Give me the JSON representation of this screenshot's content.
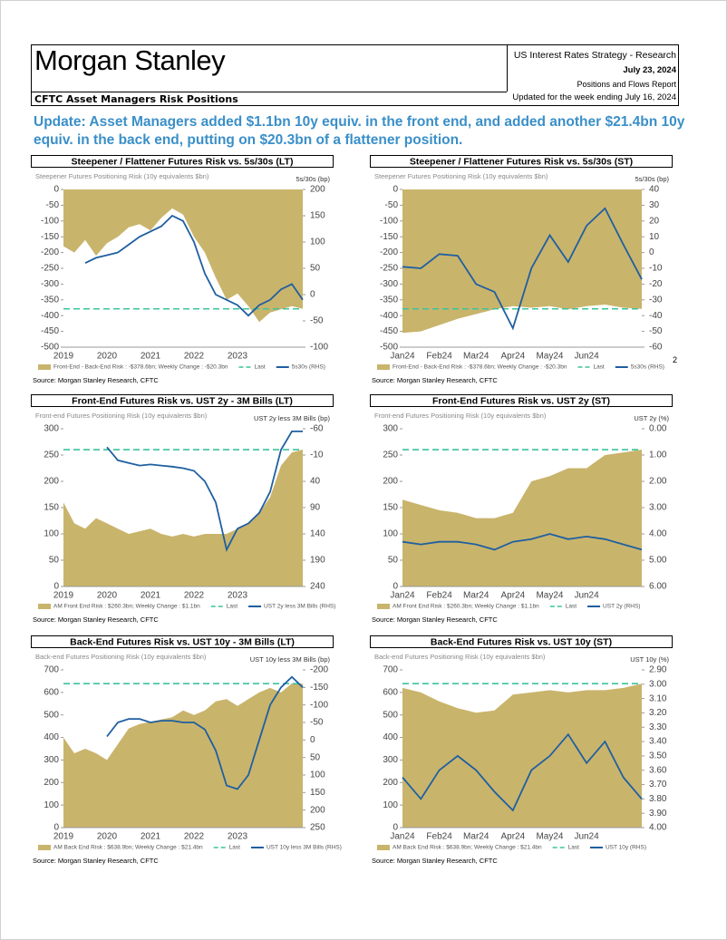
{
  "header": {
    "brand": "Morgan Stanley",
    "series": "US Interest Rates Strategy - Research",
    "date": "July 23, 2024",
    "report": "Positions and Flows Report",
    "updated": "Updated for the week ending July 16, 2024",
    "section": "CFTC Asset Managers Risk Positions"
  },
  "headline": "Update: Asset Managers added $1.1bn 10y equiv. in the front end, and added another $21.4bn 10y equiv. in the back end, putting on $20.3bn of a flattener position.",
  "page_number": "2",
  "chart_data": [
    {
      "type": "area",
      "title": "Steepener / Flattener Futures Risk vs. 5s/30s (LT)",
      "subtitle": "Steepener Futures Positioning Risk (10y equivalents $bn)",
      "y2_label": "5s/30s (bp)",
      "categories": [
        "2019",
        null,
        null,
        null,
        "2020",
        null,
        null,
        null,
        "2021",
        null,
        null,
        null,
        "2022",
        null,
        null,
        null,
        "2023",
        null,
        null,
        null,
        null,
        null,
        null
      ],
      "series": [
        {
          "name": "Front-End - Back-End Risk : -$378.6bn; Weekly Change : -$20.3bn",
          "color": "#c9b46c",
          "values": [
            -180,
            -200,
            -160,
            -210,
            -170,
            -150,
            -120,
            -110,
            -130,
            -90,
            -60,
            -80,
            -150,
            -200,
            -280,
            -350,
            -330,
            -370,
            -420,
            -390,
            -380,
            -370,
            -378.6
          ]
        },
        {
          "name": "Last",
          "color": "#3cc39c",
          "value": -378.6
        },
        {
          "name": "5s30s (RHS)",
          "color": "#1f5fa0",
          "axis": "y2",
          "values": [
            null,
            null,
            60,
            70,
            75,
            80,
            95,
            110,
            120,
            130,
            150,
            140,
            100,
            40,
            0,
            -10,
            -20,
            -40,
            -20,
            -10,
            10,
            20,
            -10
          ]
        }
      ],
      "ylim": [
        -500,
        0
      ],
      "yticks": [
        0,
        -50,
        -100,
        -150,
        -200,
        -250,
        -300,
        -350,
        -400,
        -450,
        -500
      ],
      "y2lim": [
        -100,
        200
      ],
      "y2ticks": [
        200,
        150,
        100,
        50,
        0,
        -50,
        -100
      ],
      "source": "Source: Morgan Stanley Research, CFTC"
    },
    {
      "type": "area",
      "title": "Steepener / Flattener Futures Risk vs. 5s/30s (ST)",
      "subtitle": "Steepener Futures Positioning Risk (10y equivalents $bn)",
      "y2_label": "5s/30s (bp)",
      "categories": [
        "Jan24",
        null,
        "Feb24",
        null,
        "Mar24",
        null,
        "Apr24",
        null,
        "May24",
        null,
        "Jun24",
        null,
        null,
        null
      ],
      "series": [
        {
          "name": "Front-End - Back-End Risk : -$378.6bn; Weekly Change : -$20.3bn",
          "color": "#c9b46c",
          "values": [
            -455,
            -450,
            -430,
            -410,
            -395,
            -380,
            -370,
            -375,
            -370,
            -380,
            -370,
            -365,
            -375,
            -378.6
          ]
        },
        {
          "name": "Last",
          "color": "#3cc39c",
          "value": -378.6
        },
        {
          "name": "5s30s (RHS)",
          "color": "#1f5fa0",
          "axis": "y2",
          "values": [
            -9,
            -10,
            -1,
            -2,
            -20,
            -25,
            -48,
            -10,
            11,
            -6,
            17,
            28,
            5,
            -17
          ]
        }
      ],
      "ylim": [
        -500,
        0
      ],
      "yticks": [
        0,
        -50,
        -100,
        -150,
        -200,
        -250,
        -300,
        -350,
        -400,
        -450,
        -500
      ],
      "y2lim": [
        -60,
        40
      ],
      "y2ticks": [
        40,
        30,
        20,
        10,
        0,
        -10,
        -20,
        -30,
        -40,
        -50,
        -60
      ],
      "source": "Source: Morgan Stanley Research, CFTC"
    },
    {
      "type": "area",
      "title": "Front-End Futures Risk vs. UST 2y - 3M Bills (LT)",
      "subtitle": "Front-end Futures Positioning Risk (10y equivalents $bn)",
      "y2_label": "UST 2y less 3M Bills (bp)",
      "categories": [
        "2019",
        null,
        null,
        null,
        "2020",
        null,
        null,
        null,
        "2021",
        null,
        null,
        null,
        "2022",
        null,
        null,
        null,
        "2023",
        null,
        null,
        null,
        null,
        null,
        null
      ],
      "series": [
        {
          "name": "AM Front End Risk : $260.3bn; Weekly Change : $1.1bn",
          "color": "#c9b46c",
          "values": [
            160,
            120,
            110,
            130,
            120,
            110,
            100,
            105,
            110,
            100,
            95,
            100,
            95,
            100,
            100,
            100,
            110,
            120,
            140,
            170,
            230,
            255,
            260.3
          ]
        },
        {
          "name": "Last",
          "color": "#3cc39c",
          "value": 260.3
        },
        {
          "name": "UST 2y less 3M Bills (RHS)",
          "color": "#1f5fa0",
          "axis": "y2",
          "values": [
            null,
            null,
            null,
            null,
            -25,
            0,
            5,
            10,
            8,
            10,
            12,
            15,
            20,
            40,
            80,
            170,
            130,
            120,
            100,
            60,
            -20,
            -55,
            -55
          ]
        }
      ],
      "ylim": [
        0,
        300
      ],
      "yticks": [
        300,
        250,
        200,
        150,
        100,
        50,
        0
      ],
      "y2lim": [
        240,
        -60
      ],
      "y2ticks": [
        -60,
        -10,
        40,
        90,
        140,
        190,
        240
      ],
      "source": "Source: Morgan Stanley Research, CFTC"
    },
    {
      "type": "area",
      "title": "Front-End Futures Risk vs. UST 2y (ST)",
      "subtitle": "Front-end Futures Positioning Risk (10y equivalents $bn)",
      "y2_label": "UST 2y (%)",
      "categories": [
        "Jan24",
        null,
        "Feb24",
        null,
        "Mar24",
        null,
        "Apr24",
        null,
        "May24",
        null,
        "Jun24",
        null,
        null,
        null
      ],
      "series": [
        {
          "name": "AM Front End Risk : $260.3bn; Weekly Change : $1.1bn",
          "color": "#c9b46c",
          "values": [
            165,
            155,
            145,
            140,
            130,
            130,
            140,
            200,
            210,
            225,
            225,
            250,
            255,
            260.3
          ]
        },
        {
          "name": "Last",
          "color": "#3cc39c",
          "value": 260.3
        },
        {
          "name": "UST 2y (RHS)",
          "color": "#1f5fa0",
          "axis": "y2",
          "values": [
            4.3,
            4.4,
            4.3,
            4.3,
            4.4,
            4.6,
            4.3,
            4.2,
            4.0,
            4.2,
            4.1,
            4.2,
            4.4,
            4.6
          ]
        }
      ],
      "ylim": [
        0,
        300
      ],
      "yticks": [
        300,
        250,
        200,
        150,
        100,
        50,
        0
      ],
      "y2lim": [
        6,
        0
      ],
      "y2ticks": [
        {
          "value": 0,
          "label": "0.00"
        },
        {
          "value": 1,
          "label": "1.00"
        },
        {
          "value": 2,
          "label": "2.00"
        },
        {
          "value": 3,
          "label": "3.00"
        },
        {
          "value": 4,
          "label": "4.00"
        },
        {
          "value": 5,
          "label": "5.00"
        },
        {
          "value": 6,
          "label": "6.00"
        }
      ],
      "source": "Source: Morgan Stanley Research, CFTC"
    },
    {
      "type": "area",
      "title": "Back-End Futures Risk vs. UST 10y - 3M Bills (LT)",
      "subtitle": "Back-end Futures Positioning Risk (10y equivalents $bn)",
      "y2_label": "UST 10y less 3M Bills (bp)",
      "categories": [
        "2019",
        null,
        null,
        null,
        "2020",
        null,
        null,
        null,
        "2021",
        null,
        null,
        null,
        "2022",
        null,
        null,
        null,
        "2023",
        null,
        null,
        null,
        null,
        null,
        null
      ],
      "series": [
        {
          "name": "AM Back End Risk : $638.9bn; Weekly Change : $21.4bn",
          "color": "#c9b46c",
          "values": [
            400,
            330,
            350,
            330,
            300,
            370,
            440,
            460,
            470,
            480,
            490,
            520,
            500,
            520,
            560,
            570,
            540,
            570,
            600,
            620,
            600,
            640,
            638.9
          ]
        },
        {
          "name": "Last",
          "color": "#3cc39c",
          "value": 638.9
        },
        {
          "name": "UST 10y less 3M Bills (RHS)",
          "color": "#1f5fa0",
          "axis": "y2",
          "values": [
            null,
            null,
            null,
            null,
            -10,
            -50,
            -60,
            -60,
            -50,
            -55,
            -55,
            -50,
            -50,
            -30,
            30,
            130,
            140,
            100,
            0,
            -100,
            -150,
            -180,
            -150
          ]
        }
      ],
      "ylim": [
        0,
        700
      ],
      "yticks": [
        700,
        600,
        500,
        400,
        300,
        200,
        100,
        0
      ],
      "y2lim": [
        250,
        -200
      ],
      "y2ticks": [
        -200,
        -150,
        -100,
        -50,
        0,
        50,
        100,
        150,
        200,
        250
      ],
      "source": "Source: Morgan Stanley Research, CFTC"
    },
    {
      "type": "area",
      "title": "Back-End Futures Risk vs. UST 10y (ST)",
      "subtitle": "Back-end Futures Positioning Risk (10y equivalents $bn)",
      "y2_label": "UST 10y (%)",
      "categories": [
        "Jan24",
        null,
        "Feb24",
        null,
        "Mar24",
        null,
        "Apr24",
        null,
        "May24",
        null,
        "Jun24",
        null,
        null,
        null
      ],
      "series": [
        {
          "name": "AM Back End Risk : $638.9bn; Weekly Change : $21.4bn",
          "color": "#c9b46c",
          "values": [
            620,
            600,
            560,
            530,
            510,
            520,
            590,
            600,
            610,
            600,
            610,
            610,
            620,
            638.9
          ]
        },
        {
          "name": "Last",
          "color": "#3cc39c",
          "value": 638.9
        },
        {
          "name": "UST 10y (RHS)",
          "color": "#1f5fa0",
          "axis": "y2",
          "values": [
            3.65,
            3.8,
            3.6,
            3.5,
            3.6,
            3.75,
            3.88,
            3.6,
            3.5,
            3.35,
            3.55,
            3.4,
            3.65,
            3.8
          ]
        }
      ],
      "ylim": [
        0,
        700
      ],
      "yticks": [
        700,
        600,
        500,
        400,
        300,
        200,
        100,
        0
      ],
      "y2lim": [
        4.0,
        2.9
      ],
      "y2ticks": [
        {
          "value": 2.9,
          "label": "2.90"
        },
        {
          "value": 3.0,
          "label": "3.00"
        },
        {
          "value": 3.1,
          "label": "3.10"
        },
        {
          "value": 3.2,
          "label": "3.20"
        },
        {
          "value": 3.3,
          "label": "3.30"
        },
        {
          "value": 3.4,
          "label": "3.40"
        },
        {
          "value": 3.5,
          "label": "3.50"
        },
        {
          "value": 3.6,
          "label": "3.60"
        },
        {
          "value": 3.7,
          "label": "3.70"
        },
        {
          "value": 3.8,
          "label": "3.80"
        },
        {
          "value": 3.9,
          "label": "3.90"
        },
        {
          "value": 4.0,
          "label": "4.00"
        }
      ],
      "source": "Source: Morgan Stanley Research, CFTC"
    }
  ]
}
